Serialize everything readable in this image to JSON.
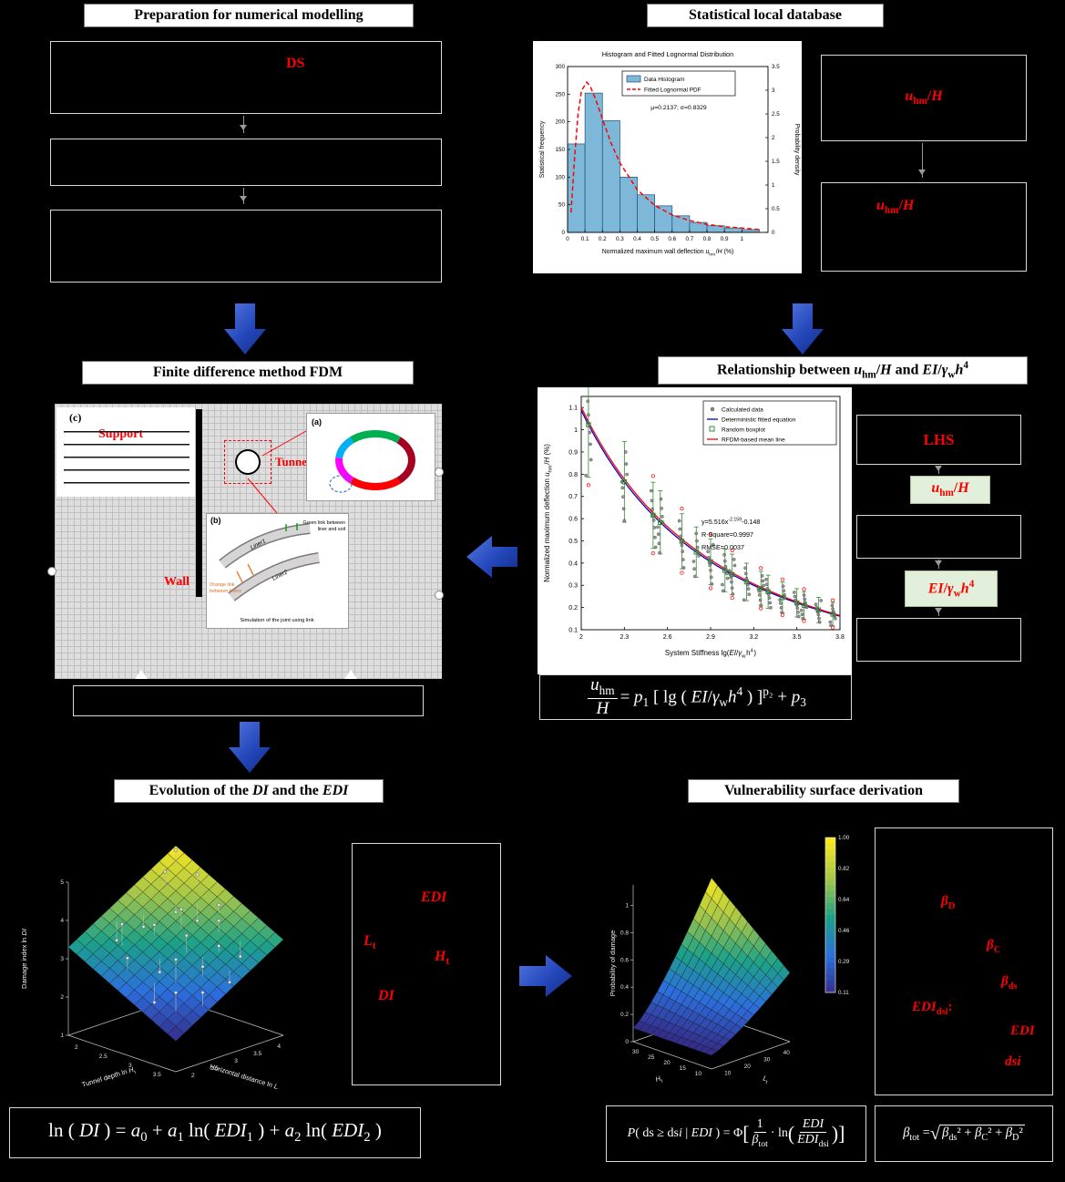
{
  "colors": {
    "red": "#ff0000",
    "arrow_blue_dark": "#16339e",
    "arrow_blue_light": "#5577e0",
    "green_chip_bg": "#e2efda"
  },
  "titles": {
    "prep": "Preparation for numerical modelling",
    "stat": "Statistical local database",
    "fdm": "Finite difference method FDM",
    "rel": "Relationship between *u*_{hm}/*H* and *EI*/*γ*_{w}*h*^{4}",
    "evo": "Evolution of the *DI* and the *EDI*",
    "vul": "Vulnerability surface derivation"
  },
  "prep": {
    "box1_label": "DS"
  },
  "stat": {
    "box1_label": "*u*_{hm}/*H*",
    "box2_label": "*u*_{hm}/*H*"
  },
  "fdm": {
    "c": "(c)",
    "a": "(a)",
    "b": "(b)",
    "support": "Support",
    "tunnel": "Tunnel",
    "wall": "Wall",
    "liner1": "Liner1",
    "liner2": "Liner2",
    "green1": "Green link between",
    "green2": "liner and soil",
    "orange1": "Orange link",
    "orange2": "between liners",
    "caption": "Simulation of the joint using link"
  },
  "lhs": {
    "lhs": "LHS",
    "chip1": "*u*_{hm}/*H*",
    "chip2": "*EI*/*γ*_{w}*h*^{4}"
  },
  "evo": {
    "edi": "*EDI*",
    "lt": "*L*_{t}",
    "ht": "*H*_{t}",
    "di": "*DI*"
  },
  "vul": {
    "bd": "*β*_{D}",
    "bc": "*β*_{C}",
    "bds": "*β*_{ds}",
    "edidsi": "*EDI*_{dsi}:",
    "edi": "*EDI*",
    "dsi": "*dsi*"
  },
  "formulas": {
    "fit": {
      "num": "*u*_{hm}",
      "den": "*H*",
      "rhs": "= *p*_{1} [ lg ( *EI*/*γ*_{w}*h*^{4} ) ]^{p₂} + *p*_{3}"
    },
    "di": "ln ( *DI* ) = *a*_{0} + *a*_{1} ln( *EDI*_{1} ) + *a*_{2} ln( *EDI*_{2} )",
    "prob": {
      "pre": "*P*( ds ≥ ds*i* | *EDI* ) = Φ",
      "lb": "[",
      "f1n": "1",
      "f1d": "*β*_{tot}",
      "mid": "· ln",
      "lp": "(",
      "f2n": "*EDI*",
      "f2d": "*EDI*_{dsi}",
      "rp": ")",
      "rb": "]"
    },
    "beta": {
      "lead": "*β*_{tot} = ",
      "rad": "√",
      "inner": "*β*_{ds}² + *β*_{C}² + *β*_{D}²"
    }
  },
  "chart_data": [
    {
      "id": "lognormal_histogram",
      "type": "bar",
      "title": "Histogram and Fitted Lognormal Distribution",
      "xlabel": "Normalized maximum wall deflection *u*_{hm}/*H* (%)",
      "ylabel": "Statistical frequency",
      "ylabel_right": "Probability density",
      "legend": [
        "Data Histogram",
        "Fitted Lognormal PDF"
      ],
      "annotation": "μ=0.2137; σ=0.8329",
      "bin_start": 0,
      "bin_width": 0.1,
      "frequencies": [
        160,
        252,
        202,
        100,
        68,
        48,
        30,
        18,
        12,
        8,
        5
      ],
      "xticks": [
        0,
        0.1,
        0.2,
        0.3,
        0.4,
        0.5,
        0.6,
        0.7,
        0.8,
        0.9,
        1
      ],
      "yticks_left": [
        0,
        50,
        100,
        150,
        200,
        250,
        300
      ],
      "yticks_right": [
        0,
        0.5,
        1,
        1.5,
        2,
        2.5,
        3,
        3.5
      ],
      "xlim": [
        0,
        1.15
      ],
      "ylim_left": [
        0,
        300
      ],
      "ylim_right": [
        0,
        3.5
      ],
      "pdf_curve_x": [
        0.02,
        0.04,
        0.06,
        0.08,
        0.11,
        0.13,
        0.16,
        0.2,
        0.25,
        0.3,
        0.4,
        0.5,
        0.6,
        0.7,
        0.8,
        0.9,
        1.0,
        1.1
      ],
      "pdf_curve_y": [
        0.42,
        1.58,
        2.5,
        2.99,
        3.17,
        3.08,
        2.82,
        2.39,
        1.88,
        1.47,
        0.9,
        0.57,
        0.37,
        0.25,
        0.17,
        0.12,
        0.09,
        0.06
      ],
      "bar_color": "#7db8d8",
      "bar_edge": "#1f4e79",
      "pdf_color": "#ff0000"
    },
    {
      "id": "stiffness_fit",
      "type": "scatter",
      "xlabel": "System Stiffness lg(*EI*/*γ*_{w}h^{4})",
      "ylabel": "Normalized maximum deflection *u*_{hm}/*H* (%)",
      "legend": [
        "Calculated data",
        "Deterministic fitted equation",
        "Random boxplot",
        "RFDM-based mean line"
      ],
      "annotations": {
        "eq_base": "y=5.516x",
        "eq_exp": "-2.159",
        "eq_tail": "-0.148",
        "r2": "R-Square=0.9997",
        "rmse": "RMSE=0.0037"
      },
      "fit": {
        "a": 5.516,
        "b": -2.159,
        "c": -0.148
      },
      "xlim": [
        2,
        3.8
      ],
      "ylim": [
        0.1,
        1.15
      ],
      "xticks": [
        2,
        2.3,
        2.6,
        2.9,
        3.2,
        3.5,
        3.8
      ],
      "yticks": [
        0.1,
        0.2,
        0.3,
        0.4,
        0.5,
        0.6,
        0.7,
        0.8,
        0.9,
        1.0,
        1.1
      ],
      "cluster_x": [
        2.05,
        2.3,
        2.5,
        2.55,
        2.7,
        2.8,
        2.9,
        3.0,
        3.05,
        3.15,
        3.25,
        3.3,
        3.4,
        3.5,
        3.55,
        3.65,
        3.75
      ],
      "point_offsets": [
        -1.3,
        -0.9,
        -0.5,
        -0.2,
        0,
        0.25,
        0.6,
        1.0
      ],
      "colors": {
        "data": "#8a8a8a",
        "fit": "#0000c8",
        "box": "#2e8b2e",
        "mean": "#ff0000"
      }
    },
    {
      "id": "di_surface",
      "type": "heatmap",
      "render": "3d-surface",
      "zlabel": "Damage index ln *DI*",
      "xlabel": "Tunnel depth ln *H*_{t}",
      "ylabel": "Horizontal distance ln *L*_{t}",
      "zlim": [
        1,
        5
      ],
      "clim": [
        1.8,
        5
      ],
      "zticks": [
        1,
        2,
        3,
        4,
        5
      ],
      "xticks": [
        2,
        2.5,
        3,
        3.5
      ],
      "yticks": [
        2,
        2.5,
        3,
        3.5,
        4
      ],
      "plane": {
        "z00": 1.8,
        "du": 1.5,
        "dv": 1.7
      },
      "scatter": [
        [
          0.05,
          0.3,
          0.35
        ],
        [
          0.1,
          0.6,
          -0.3
        ],
        [
          0.15,
          0.15,
          0.5
        ],
        [
          0.2,
          0.45,
          0.25
        ],
        [
          0.2,
          0.8,
          -0.4
        ],
        [
          0.3,
          0.3,
          0.6
        ],
        [
          0.3,
          0.55,
          -0.25
        ],
        [
          0.35,
          0.75,
          0.3
        ],
        [
          0.4,
          0.2,
          -0.5
        ],
        [
          0.4,
          0.5,
          0.45
        ],
        [
          0.45,
          0.85,
          0.2
        ],
        [
          0.5,
          0.35,
          -0.35
        ],
        [
          0.55,
          0.6,
          0.5
        ],
        [
          0.6,
          0.15,
          0.3
        ],
        [
          0.6,
          0.8,
          -0.45
        ],
        [
          0.65,
          0.45,
          0.25
        ],
        [
          0.7,
          0.7,
          -0.2
        ],
        [
          0.75,
          0.25,
          0.55
        ],
        [
          0.8,
          0.5,
          -0.3
        ],
        [
          0.85,
          0.75,
          0.35
        ],
        [
          0.9,
          0.35,
          -0.5
        ],
        [
          0.9,
          0.9,
          0.4
        ],
        [
          0.25,
          0.65,
          0.15
        ],
        [
          0.7,
          0.9,
          0.25
        ]
      ]
    },
    {
      "id": "vulnerability_surface",
      "type": "heatmap",
      "render": "3d-surface",
      "zlabel": "Probability of damage",
      "xlabel": "*H*_{t}",
      "ylabel": "*L*_{t}",
      "zlim": [
        0,
        1.15
      ],
      "clim": [
        0.1,
        1.0
      ],
      "zticks": [
        0,
        0.2,
        0.4,
        0.6,
        0.8,
        1
      ],
      "xticks": [
        30,
        25,
        20,
        15,
        10
      ],
      "yticks": [
        10,
        20,
        30,
        40
      ],
      "func": {
        "base": 0.1,
        "amp": 0.9,
        "pow": 1.25,
        "umix": [
          0.45,
          0.55
        ]
      },
      "colorbar_ticks": [
        1.0,
        0.82,
        0.64,
        0.46,
        0.29,
        0.11
      ]
    }
  ]
}
